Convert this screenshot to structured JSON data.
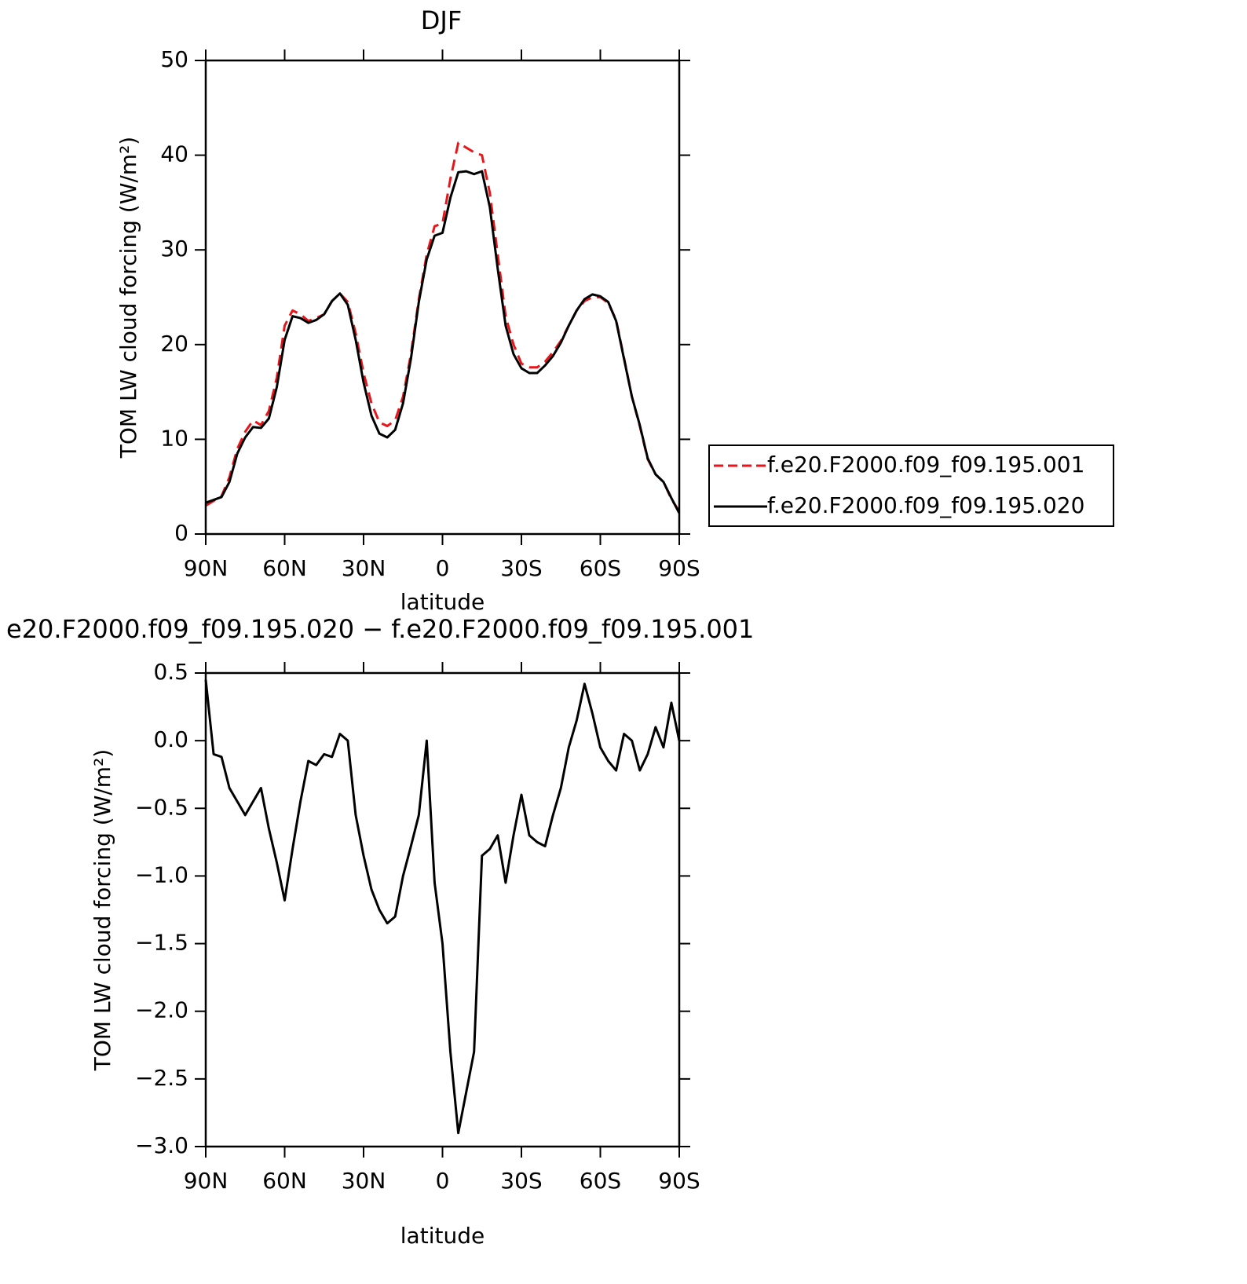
{
  "chart_data": [
    {
      "type": "line",
      "title": "DJF",
      "xlabel": "latitude",
      "ylabel": "TOM LW cloud forcing (W/m²)",
      "x": [
        90,
        87,
        84,
        81,
        78,
        75,
        72,
        69,
        66,
        63,
        60,
        57,
        54,
        51,
        48,
        45,
        42,
        39,
        36,
        33,
        30,
        27,
        24,
        21,
        18,
        15,
        12,
        9,
        6,
        3,
        0,
        -3,
        -6,
        -9,
        -12,
        -15,
        -18,
        -21,
        -24,
        -27,
        -30,
        -33,
        -36,
        -39,
        -42,
        -45,
        -48,
        -51,
        -54,
        -57,
        -60,
        -63,
        -66,
        -69,
        -72,
        -75,
        -78,
        -81,
        -84,
        -87,
        -90
      ],
      "xlim": [
        90,
        -90
      ],
      "xticks": [
        {
          "value": 90,
          "label": "90N"
        },
        {
          "value": 60,
          "label": "60N"
        },
        {
          "value": 30,
          "label": "30N"
        },
        0,
        {
          "value": -30,
          "label": "30S"
        },
        {
          "value": -60,
          "label": "60S"
        },
        {
          "value": -90,
          "label": "90S"
        }
      ],
      "ylim": [
        0,
        50
      ],
      "yticks": [
        0,
        10,
        20,
        30,
        40,
        50
      ],
      "legend": "right",
      "series": [
        {
          "name": "f.e20.F2000.f09_f09.195.001",
          "color": "#e8161b",
          "line_style": "dashed",
          "values": [
            3.0,
            3.5,
            4.0,
            6.0,
            9.0,
            10.8,
            12.0,
            11.5,
            13.0,
            16.5,
            22.0,
            23.6,
            23.2,
            22.5,
            22.8,
            23.2,
            24.6,
            25.4,
            24.5,
            21.2,
            17.0,
            13.8,
            11.8,
            11.4,
            12.0,
            14.5,
            19.0,
            24.8,
            29.5,
            32.5,
            32.8,
            37.5,
            41.3,
            40.8,
            40.3,
            40.0,
            36.0,
            29.5,
            23.0,
            20.0,
            18.0,
            17.6,
            17.6,
            18.2,
            19.2,
            20.4,
            22.0,
            23.6,
            24.6,
            25.0,
            25.0,
            24.4,
            22.6,
            18.6,
            14.5,
            11.4,
            7.9,
            6.3,
            5.5,
            3.7,
            2.4
          ]
        },
        {
          "name": "f.e20.F2000.f09_f09.195.020",
          "color": "#000000",
          "line_style": "solid",
          "values": [
            3.3,
            3.6,
            3.9,
            5.5,
            8.5,
            10.2,
            11.3,
            11.2,
            12.2,
            15.5,
            20.5,
            23.0,
            22.8,
            22.3,
            22.6,
            23.2,
            24.6,
            25.4,
            24.2,
            20.5,
            16.0,
            12.5,
            10.6,
            10.2,
            11.0,
            13.8,
            18.5,
            24.5,
            29.0,
            31.5,
            31.8,
            35.5,
            38.2,
            38.3,
            38.0,
            38.3,
            34.5,
            28.0,
            22.0,
            19.0,
            17.5,
            17.0,
            17.0,
            17.8,
            18.8,
            20.2,
            22.0,
            23.6,
            24.8,
            25.3,
            25.1,
            24.5,
            22.5,
            18.5,
            14.5,
            11.5,
            8.0,
            6.3,
            5.5,
            3.8,
            2.2
          ]
        }
      ]
    },
    {
      "type": "line",
      "title": "e20.F2000.f09_f09.195.020 − f.e20.F2000.f09_f09.195.001",
      "xlabel": "latitude",
      "ylabel": "TOM LW cloud forcing (W/m²)",
      "x": [
        90,
        87,
        84,
        81,
        78,
        75,
        72,
        69,
        66,
        63,
        60,
        57,
        54,
        51,
        48,
        45,
        42,
        39,
        36,
        33,
        30,
        27,
        24,
        21,
        18,
        15,
        12,
        9,
        6,
        3,
        0,
        -3,
        -6,
        -9,
        -12,
        -15,
        -18,
        -21,
        -24,
        -27,
        -30,
        -33,
        -36,
        -39,
        -42,
        -45,
        -48,
        -51,
        -54,
        -57,
        -60,
        -63,
        -66,
        -69,
        -72,
        -75,
        -78,
        -81,
        -84,
        -87,
        -90
      ],
      "xlim": [
        90,
        -90
      ],
      "xticks": [
        {
          "value": 90,
          "label": "90N"
        },
        {
          "value": 60,
          "label": "60N"
        },
        {
          "value": 30,
          "label": "30N"
        },
        0,
        {
          "value": -30,
          "label": "30S"
        },
        {
          "value": -60,
          "label": "60S"
        },
        {
          "value": -90,
          "label": "90S"
        }
      ],
      "ylim": [
        -3.0,
        0.5
      ],
      "yticks": [
        0.5,
        {
          "value": 0,
          "label": "0.0"
        },
        {
          "value": -0.5,
          "label": "−0.5"
        },
        {
          "value": -1,
          "label": "−1.0"
        },
        {
          "value": -1.5,
          "label": "−1.5"
        },
        {
          "value": -2,
          "label": "−2.0"
        },
        {
          "value": -2.5,
          "label": "−2.5"
        },
        {
          "value": -3,
          "label": "−3.0"
        }
      ],
      "series": [
        {
          "color": "#000000",
          "line_style": "solid",
          "values": [
            0.45,
            -0.1,
            -0.12,
            -0.35,
            -0.45,
            -0.55,
            -0.45,
            -0.35,
            -0.65,
            -0.9,
            -1.18,
            -0.8,
            -0.45,
            -0.15,
            -0.18,
            -0.1,
            -0.12,
            0.05,
            0.0,
            -0.55,
            -0.85,
            -1.1,
            -1.25,
            -1.35,
            -1.3,
            -1.0,
            -0.78,
            -0.55,
            0.0,
            -1.05,
            -1.5,
            -2.3,
            -2.9,
            -2.6,
            -2.3,
            -0.85,
            -0.8,
            -0.7,
            -1.05,
            -0.7,
            -0.4,
            -0.7,
            -0.75,
            -0.78,
            -0.55,
            -0.35,
            -0.05,
            0.15,
            0.42,
            0.2,
            -0.05,
            -0.15,
            -0.22,
            0.05,
            0.0,
            -0.22,
            -0.1,
            0.1,
            -0.05,
            0.28,
            0.0
          ]
        }
      ]
    }
  ]
}
